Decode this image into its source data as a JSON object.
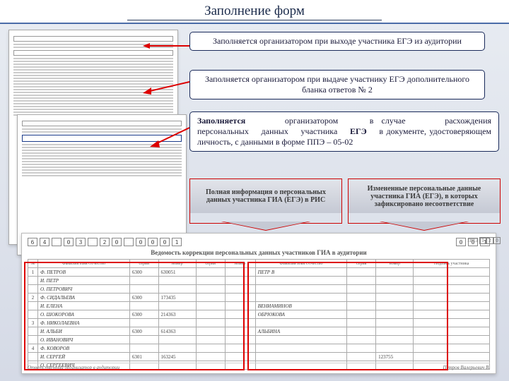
{
  "title": "Заполнение форм",
  "callouts": {
    "c1": "Заполняется организатором при выходе участника ЕГЭ из аудитории",
    "c2": "Заполняется организатором при выдаче участнику ЕГЭ дополнительного бланка ответов № 2",
    "c3_parts": {
      "a": "Заполняется",
      "b": "организатором",
      "c": "в случае",
      "d": "расхождения",
      "e": "персональных",
      "f": "данных",
      "g": "участника",
      "h": "ЕГЭ",
      "i": "в документе, удостоверяющем личность, с данными в форме ППЭ – 05-02"
    }
  },
  "banners": {
    "b1": "Полная информация о персональных данных участника ГИА (ЕГЭ) в РИС",
    "b2": "Измененные персональные данные участника ГИА (ЕГЭ), в которых зафиксировано несоответствие"
  },
  "form": {
    "header_cells": [
      "6",
      "4",
      " ",
      "0",
      "3",
      " ",
      "2",
      "0",
      " ",
      "0",
      "0",
      "0",
      "1"
    ],
    "header_cells2": [
      "0",
      "0",
      "1"
    ],
    "subtitle": "Ведомость коррекции персональных данных участников ГИА в аудитории",
    "ppz_label": "ППЭ",
    "ppz_code": [
      "1",
      "2",
      "0"
    ],
    "columns_left": [
      "№",
      "Фамилия Имя Отчество",
      "серия",
      "номер",
      "серия",
      "номер"
    ],
    "columns_right": [
      "Фамилия Имя Отчество",
      "серия",
      "номер",
      "Подпись участника"
    ],
    "rows": [
      {
        "n": "1",
        "fl": "Ф",
        "name": "ПЕТРОВ",
        "s1": "6300",
        "n1": "630051",
        "name2": "ПЕТР В",
        "s2": "",
        "n2": "",
        "sig": ""
      },
      {
        "n": "",
        "fl": "И",
        "name": "ПЕТР",
        "s1": "",
        "n1": "",
        "name2": "",
        "s2": "",
        "n2": "",
        "sig": ""
      },
      {
        "n": "",
        "fl": "О",
        "name": "ПЕТРОВИЧ",
        "s1": "",
        "n1": "",
        "name2": "",
        "s2": "",
        "n2": "",
        "sig": ""
      },
      {
        "n": "2",
        "fl": "Ф",
        "name": "СИДАЛЬЕВА",
        "s1": "6300",
        "n1": "173435",
        "name2": "",
        "s2": "",
        "n2": "",
        "sig": ""
      },
      {
        "n": "",
        "fl": "И",
        "name": "ЕЛЕНА",
        "s1": "",
        "n1": "",
        "name2": "ВЕНИАМИНОВ",
        "s2": "",
        "n2": "",
        "sig": ""
      },
      {
        "n": "",
        "fl": "О",
        "name": "ШОКОРОВА",
        "s1": "6300",
        "n1": "214363",
        "name2": "ОБРЮКОВА",
        "s2": "",
        "n2": "",
        "sig": ""
      },
      {
        "n": "3",
        "fl": "Ф",
        "name": "НИКОЛАЕВНА",
        "s1": "",
        "n1": "",
        "name2": "",
        "s2": "",
        "n2": "",
        "sig": ""
      },
      {
        "n": "",
        "fl": "И",
        "name": "АЛЬБИ",
        "s1": "6300",
        "n1": "614363",
        "name2": "АЛЬБИНА",
        "s2": "",
        "n2": "",
        "sig": ""
      },
      {
        "n": "",
        "fl": "О",
        "name": "ИВАНОВИЧ",
        "s1": "",
        "n1": "",
        "name2": "",
        "s2": "",
        "n2": "",
        "sig": ""
      },
      {
        "n": "4",
        "fl": "Ф",
        "name": "КОВОРОВ",
        "s1": "",
        "n1": "",
        "name2": "",
        "s2": "",
        "n2": "",
        "sig": ""
      },
      {
        "n": "",
        "fl": "И",
        "name": "СЕРГЕЙ",
        "s1": "6301",
        "n1": "163245",
        "name2": "",
        "s2": "",
        "n2": "123755",
        "sig": ""
      },
      {
        "n": "",
        "fl": "О",
        "name": "СЕРГЕЕВИЧ",
        "s1": "",
        "n1": "",
        "name2": "",
        "s2": "",
        "n2": "",
        "sig": ""
      }
    ],
    "footer_left": "Ответственный организатор в аудитории",
    "footer_sig": "Петров Валерьевич В."
  }
}
